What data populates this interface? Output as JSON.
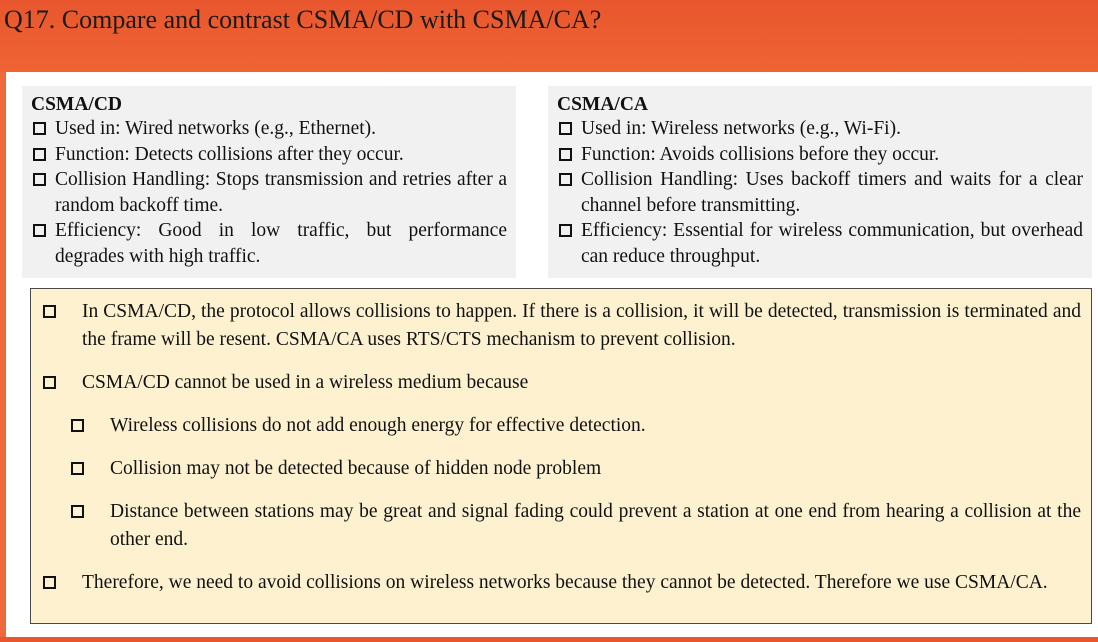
{
  "title": "Q17. Compare and contrast CSMA/CD with CSMA/CA?",
  "left_column": {
    "heading": "CSMA/CD",
    "items": [
      "Used in: Wired networks (e.g., Ethernet).",
      "Function: Detects collisions after they occur.",
      "Collision Handling: Stops transmission and retries after a random backoff time.",
      "Efficiency: Good in low traffic, but performance degrades with high traffic."
    ]
  },
  "right_column": {
    "heading": "CSMA/CA",
    "items": [
      "Used in: Wireless networks (e.g., Wi-Fi).",
      "Function: Avoids collisions before they occur.",
      "Collision Handling: Uses backoff timers and waits for a clear channel before transmitting.",
      "Efficiency: Essential for wireless communication, but overhead can reduce throughput."
    ]
  },
  "notes": {
    "p1": "In CSMA/CD, the protocol allows collisions to happen. If there is a collision, it will be detected, transmission is terminated and the frame will be resent. CSMA/CA uses RTS/CTS mechanism to prevent collision.",
    "p2": "CSMA/CD cannot be used in a wireless medium because",
    "sub1": "Wireless collisions do not add enough energy for effective detection.",
    "sub2": "Collision may not be detected because of hidden node problem",
    "sub3": "Distance between stations may be great and signal fading could prevent a station at one end from hearing a collision at the other end.",
    "p3": "Therefore, we need to avoid collisions on wireless networks because they cannot be detected. Therefore we use CSMA/CA."
  },
  "colors": {
    "header": "#e8562d",
    "column_bg": "#f1f1f1",
    "notes_bg": "#fdf1cf"
  }
}
